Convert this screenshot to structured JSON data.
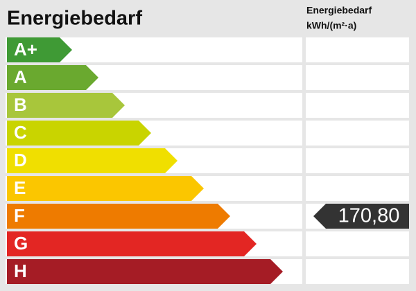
{
  "header": {
    "title": "Energiebedarf",
    "unit_title": "Energiebedarf",
    "unit": "kWh/(m²·a)"
  },
  "classes": [
    {
      "label": "A+",
      "color": "#3f9a35"
    },
    {
      "label": "A",
      "color": "#6aa92f"
    },
    {
      "label": "B",
      "color": "#a8c63b"
    },
    {
      "label": "C",
      "color": "#c9d400"
    },
    {
      "label": "D",
      "color": "#f0df00"
    },
    {
      "label": "E",
      "color": "#fbc600"
    },
    {
      "label": "F",
      "color": "#ee7b00"
    },
    {
      "label": "G",
      "color": "#e32623"
    },
    {
      "label": "H",
      "color": "#a51c25"
    }
  ],
  "indicator": {
    "value": "170,80"
  }
}
